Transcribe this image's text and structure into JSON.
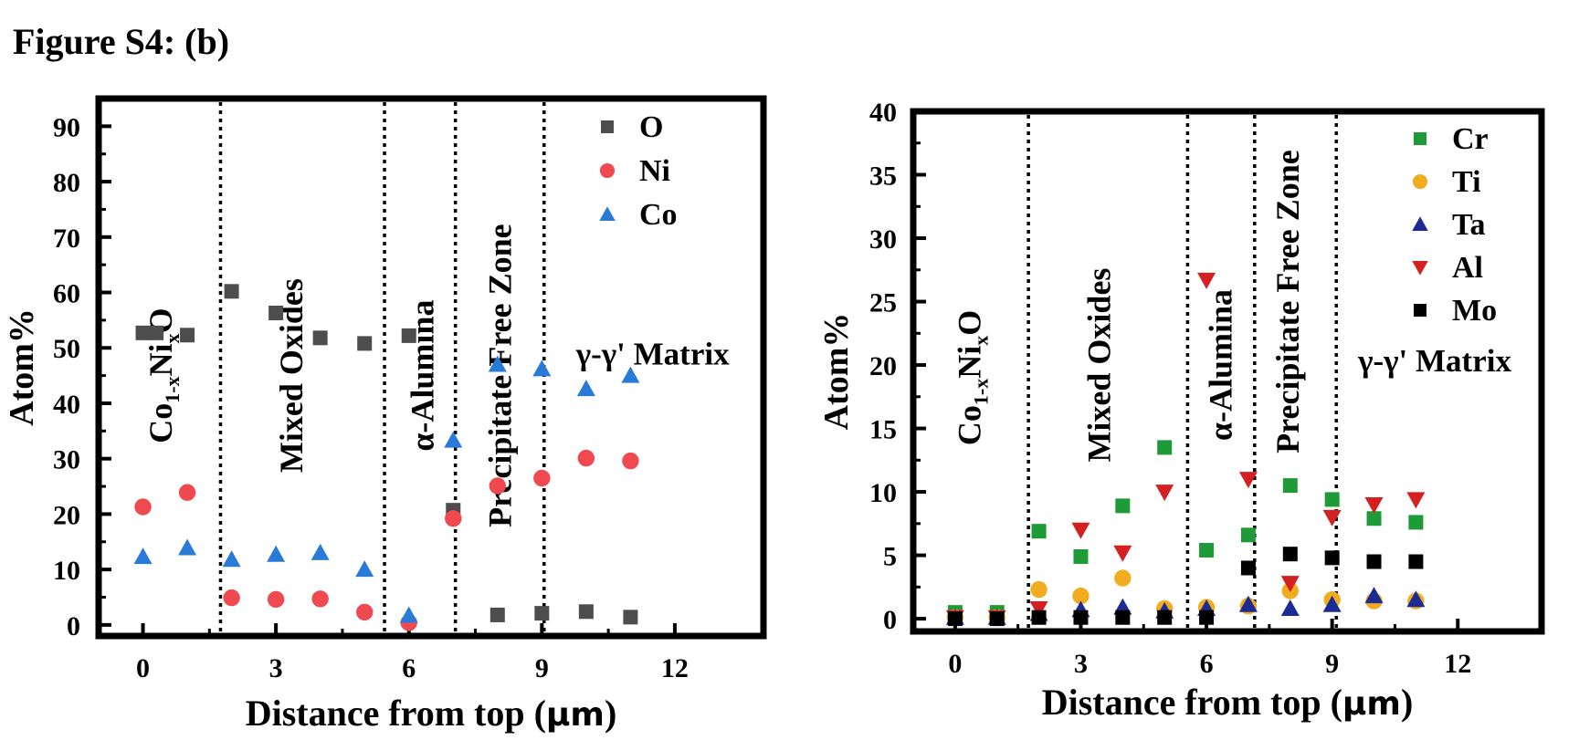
{
  "figure": {
    "title": "Figure S4: (b)"
  },
  "chart_data": [
    {
      "type": "scatter",
      "xlabel_main": "Distance from top (",
      "xlabel_unit": "μm",
      "xlabel_end": ")",
      "ylabel": "Atom%",
      "xlim": [
        -1,
        14
      ],
      "ylim": [
        -2,
        95
      ],
      "x_ticks": [
        0,
        3,
        6,
        9,
        12
      ],
      "y_ticks": [
        0,
        10,
        20,
        30,
        40,
        50,
        60,
        70,
        80,
        90
      ],
      "grid": false,
      "legend_position": "top-right",
      "boundaries": [
        1.75,
        5.45,
        7.05,
        9.05
      ],
      "regions": [
        {
          "parts": [
            "Co",
            "1-x",
            "Ni",
            "x",
            "O"
          ],
          "x": 0.65,
          "y": 45
        },
        {
          "label": "Mixed Oxides",
          "x": 3.6,
          "y": 45
        },
        {
          "label": "α-Alumina",
          "x": 6.55,
          "y": 45
        },
        {
          "label": "Precipitate Free Zone",
          "x": 8.3,
          "y": 45
        },
        {
          "label": "γ-γ' Matrix",
          "x": 11.5,
          "y": 47
        }
      ],
      "series": [
        {
          "name": "O",
          "marker": "square",
          "color": "#4d4d4d",
          "points": [
            [
              0,
              52.7
            ],
            [
              0.3,
              52.7
            ],
            [
              1,
              52.3
            ],
            [
              2,
              60.2
            ],
            [
              3,
              56.3
            ],
            [
              4,
              51.8
            ],
            [
              5,
              50.8
            ],
            [
              6,
              52.2
            ],
            [
              7,
              20.7
            ],
            [
              8,
              1.8
            ],
            [
              9,
              2.1
            ],
            [
              10,
              2.4
            ],
            [
              11,
              1.4
            ]
          ]
        },
        {
          "name": "Ni",
          "marker": "circle",
          "color": "#f0494f",
          "points": [
            [
              0,
              21.3
            ],
            [
              1,
              23.9
            ],
            [
              2,
              4.9
            ],
            [
              3,
              4.6
            ],
            [
              4,
              4.7
            ],
            [
              5,
              2.3
            ],
            [
              6,
              0.4
            ],
            [
              7,
              19.2
            ],
            [
              8,
              25.1
            ],
            [
              9,
              26.5
            ],
            [
              10,
              30.1
            ],
            [
              11,
              29.6
            ]
          ]
        },
        {
          "name": "Co",
          "marker": "triangle-up",
          "color": "#2a7bd8",
          "points": [
            [
              0,
              12.3
            ],
            [
              1,
              13.9
            ],
            [
              2,
              11.8
            ],
            [
              3,
              12.7
            ],
            [
              4,
              13.0
            ],
            [
              5,
              10.0
            ],
            [
              6,
              1.7
            ],
            [
              7,
              33.3
            ],
            [
              8,
              47.0
            ],
            [
              9,
              46.2
            ],
            [
              10,
              42.6
            ],
            [
              11,
              45.0
            ]
          ]
        }
      ]
    },
    {
      "type": "scatter",
      "xlabel_main": "Distance from top (",
      "xlabel_unit": "μm",
      "xlabel_end": ")",
      "ylabel": "Atom%",
      "xlim": [
        -1,
        14
      ],
      "ylim": [
        -1,
        40
      ],
      "x_ticks": [
        0,
        3,
        6,
        9,
        12
      ],
      "y_ticks": [
        0,
        5,
        10,
        15,
        20,
        25,
        30,
        35,
        40
      ],
      "grid": false,
      "legend_position": "top-right",
      "boundaries": [
        1.75,
        5.55,
        7.15,
        9.1
      ],
      "regions": [
        {
          "parts": [
            "Co",
            "1-x",
            "Ni",
            "x",
            "O"
          ],
          "x": 0.6,
          "y": 19
        },
        {
          "label": "Mixed Oxides",
          "x": 3.7,
          "y": 20
        },
        {
          "label": "α-Alumina",
          "x": 6.6,
          "y": 20
        },
        {
          "label": "Precipitate Free Zone",
          "x": 8.2,
          "y": 25
        },
        {
          "label": "γ-γ' Matrix",
          "x": 11.45,
          "y": 19.5
        }
      ],
      "series": [
        {
          "name": "Cr",
          "marker": "square",
          "color": "#1e9a36",
          "points": [
            [
              0,
              0.5
            ],
            [
              1,
              0.5
            ],
            [
              2,
              6.9
            ],
            [
              3,
              4.9
            ],
            [
              4,
              8.9
            ],
            [
              5,
              13.5
            ],
            [
              6,
              5.4
            ],
            [
              7,
              6.6
            ],
            [
              8,
              10.5
            ],
            [
              9,
              9.4
            ],
            [
              10,
              7.9
            ],
            [
              11,
              7.6
            ]
          ]
        },
        {
          "name": "Ti",
          "marker": "circle",
          "color": "#f2ac1f",
          "points": [
            [
              0,
              0.1
            ],
            [
              1,
              0.1
            ],
            [
              2,
              2.3
            ],
            [
              3,
              1.8
            ],
            [
              4,
              3.2
            ],
            [
              5,
              0.8
            ],
            [
              6,
              0.9
            ],
            [
              7,
              1.0
            ],
            [
              8,
              2.2
            ],
            [
              9,
              1.5
            ],
            [
              10,
              1.4
            ],
            [
              11,
              1.4
            ]
          ]
        },
        {
          "name": "Ta",
          "marker": "triangle-up",
          "color": "#1c2a94",
          "points": [
            [
              0,
              0.1
            ],
            [
              1,
              0.1
            ],
            [
              2,
              0.4
            ],
            [
              3,
              0.7
            ],
            [
              4,
              0.9
            ],
            [
              5,
              0.6
            ],
            [
              6,
              0.8
            ],
            [
              7,
              1.1
            ],
            [
              8,
              0.8
            ],
            [
              9,
              1.1
            ],
            [
              10,
              1.8
            ],
            [
              11,
              1.5
            ]
          ]
        },
        {
          "name": "Al",
          "marker": "triangle-down",
          "color": "#d42020",
          "points": [
            [
              0,
              0.1
            ],
            [
              1,
              0.1
            ],
            [
              2,
              0.8
            ],
            [
              3,
              7.0
            ],
            [
              4,
              5.2
            ],
            [
              5,
              10.0
            ],
            [
              6,
              26.7
            ],
            [
              7,
              11.0
            ],
            [
              8,
              2.8
            ],
            [
              9,
              8.0
            ],
            [
              10,
              9.0
            ],
            [
              11,
              9.4
            ]
          ]
        },
        {
          "name": "Mo",
          "marker": "square",
          "color": "#000000",
          "points": [
            [
              0,
              0
            ],
            [
              1,
              0
            ],
            [
              2,
              0.1
            ],
            [
              3,
              0.1
            ],
            [
              4,
              0.1
            ],
            [
              5,
              0.1
            ],
            [
              6,
              0.1
            ],
            [
              7,
              4.0
            ],
            [
              8,
              5.1
            ],
            [
              9,
              4.8
            ],
            [
              10,
              4.5
            ],
            [
              11,
              4.5
            ]
          ]
        }
      ]
    }
  ]
}
